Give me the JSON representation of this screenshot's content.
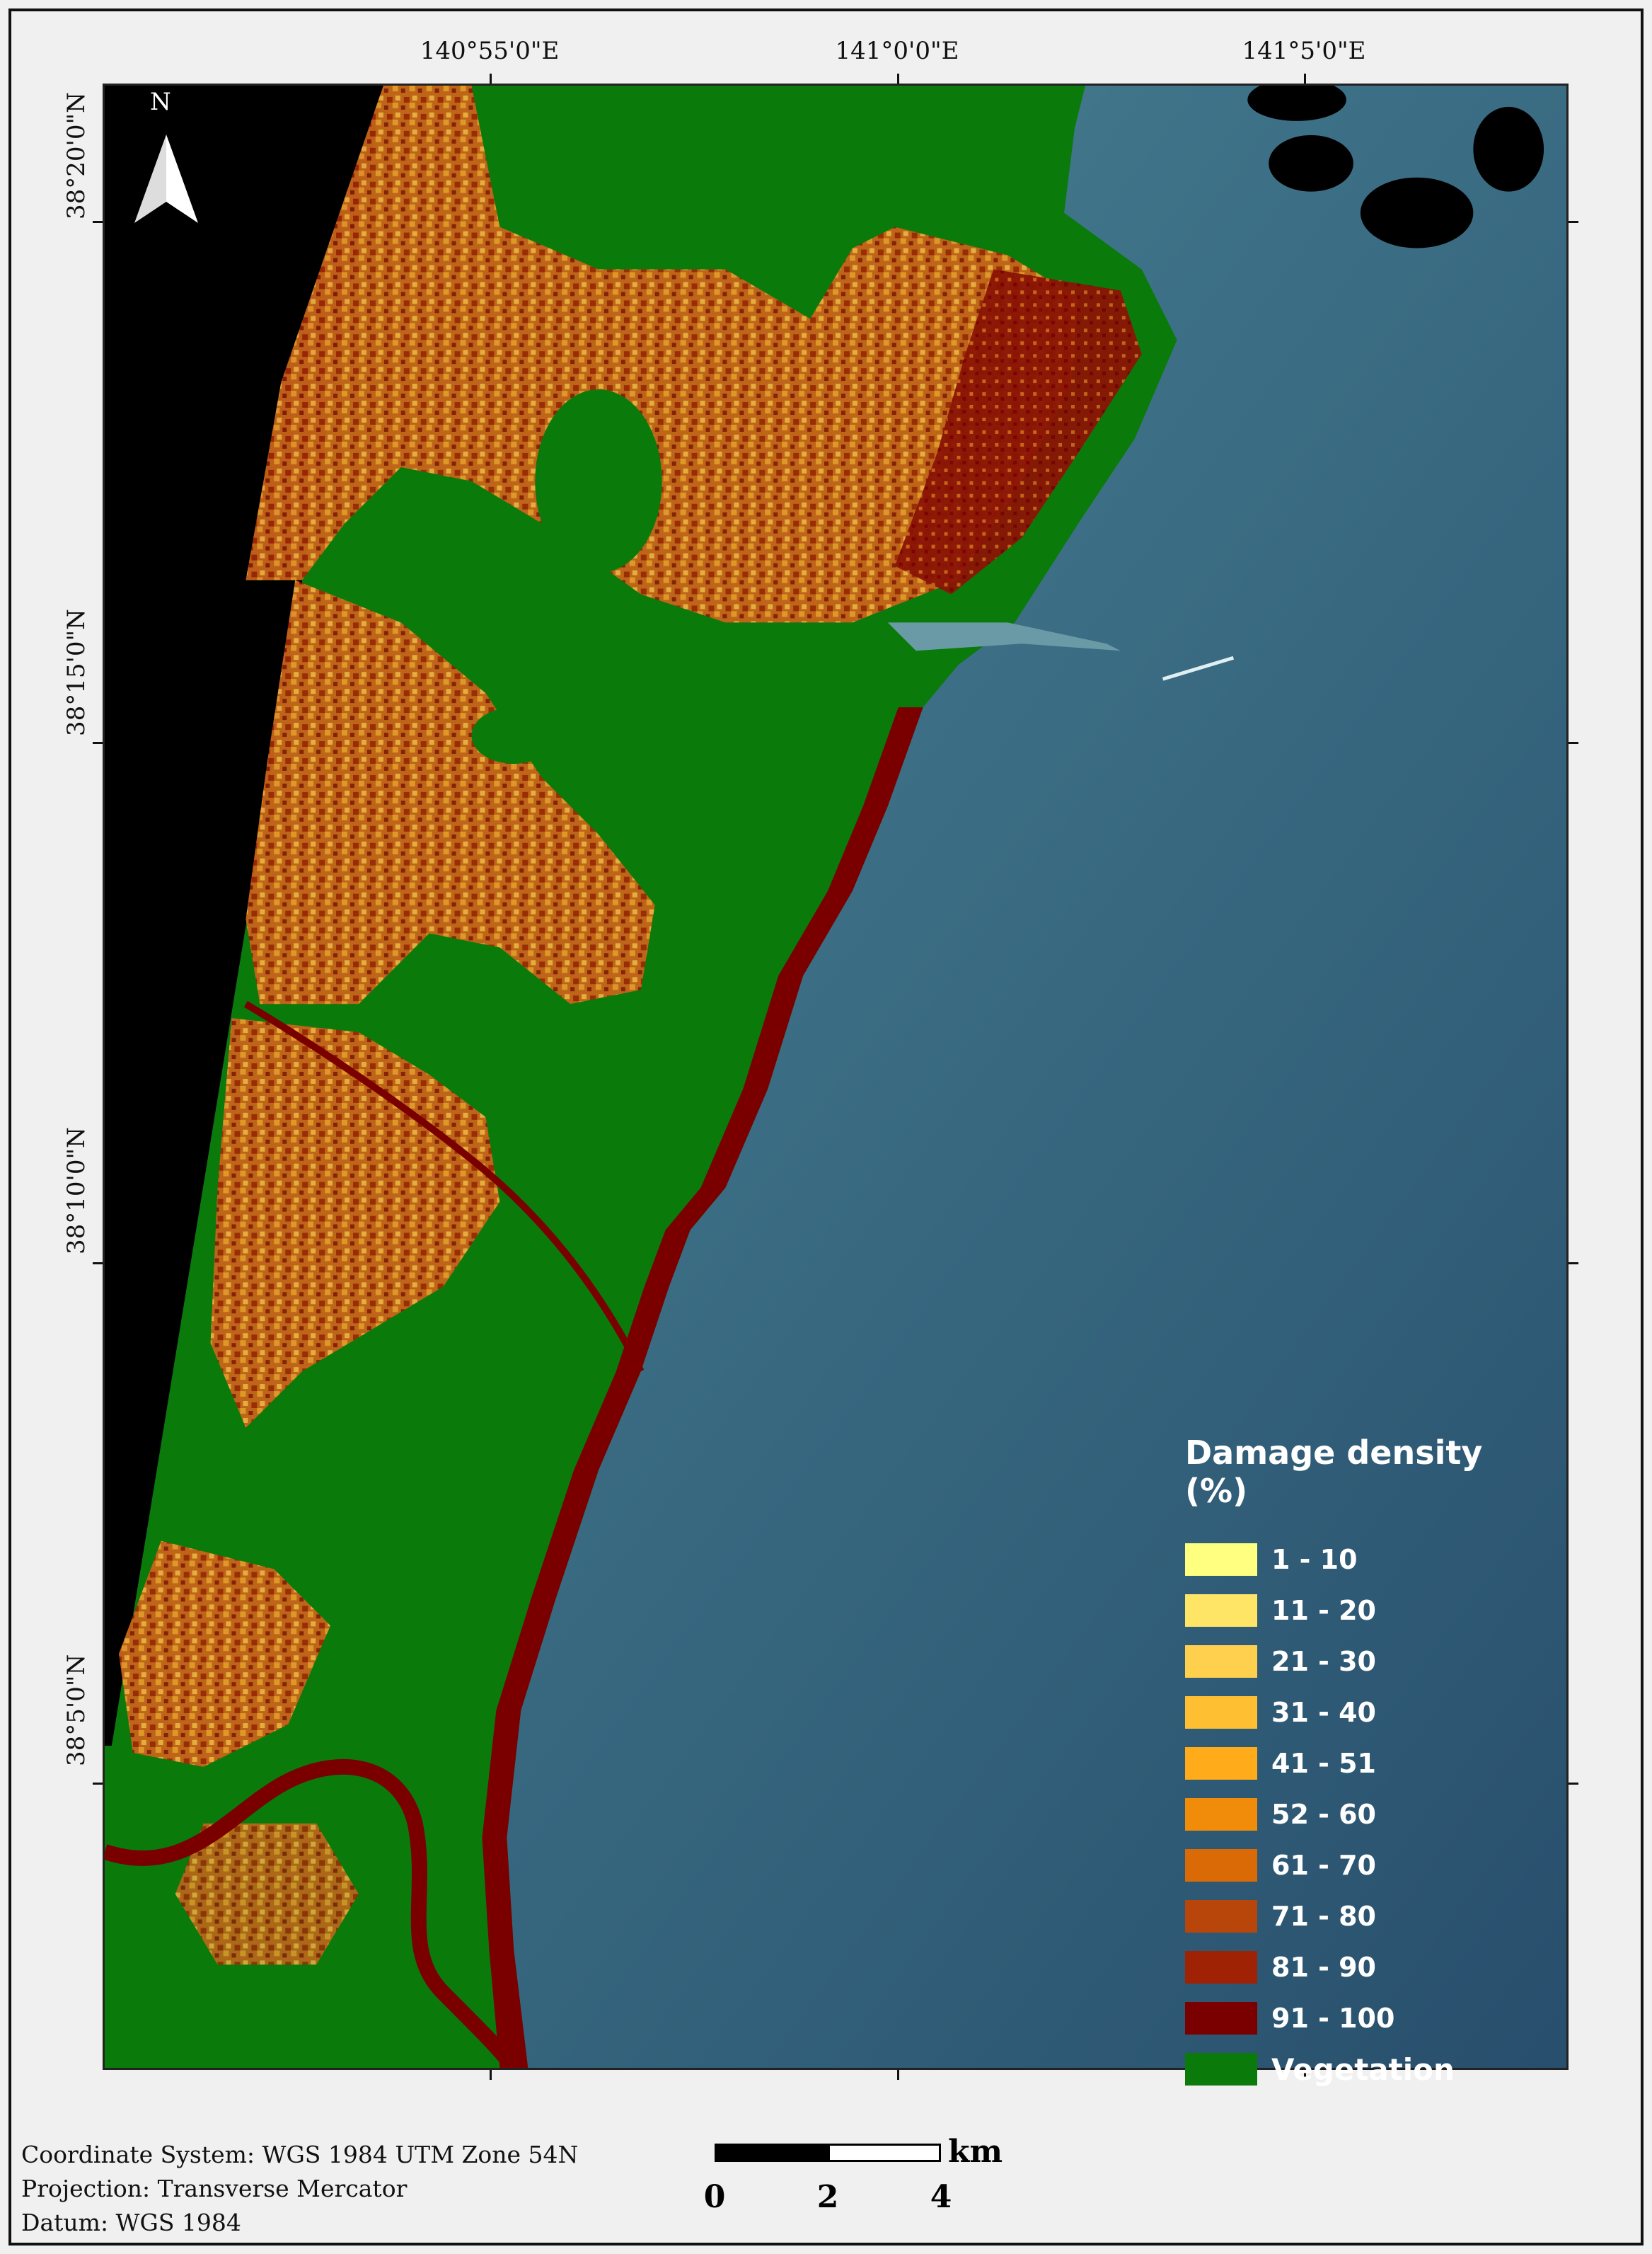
{
  "map": {
    "graticule_top": [
      "140°55'0\"E",
      "141°0'0\"E",
      "141°5'0\"E"
    ],
    "graticule_left": [
      "38°20'0\"N",
      "38°15'0\"N",
      "38°10'0\"N",
      "38°5'0\"N"
    ],
    "north_label": "N",
    "colors": {
      "no_data": "#000000",
      "sea": "#3d6f85",
      "vegetation": "#0a7a0a",
      "coast_damage": "#7a0000",
      "urban_damage": "#c8641a"
    }
  },
  "legend": {
    "title": "Damage density (%)",
    "items": [
      {
        "label": "1 - 10",
        "color": "#ffff80"
      },
      {
        "label": "11 - 20",
        "color": "#ffe566"
      },
      {
        "label": "21 - 30",
        "color": "#ffd04d"
      },
      {
        "label": "31 - 40",
        "color": "#ffbf33"
      },
      {
        "label": "41 - 51",
        "color": "#ffab1a"
      },
      {
        "label": "52 - 60",
        "color": "#f08c0a"
      },
      {
        "label": "61 - 70",
        "color": "#d96a05"
      },
      {
        "label": "71 - 80",
        "color": "#b8460a"
      },
      {
        "label": "81 - 90",
        "color": "#a02205"
      },
      {
        "label": "91 - 100",
        "color": "#7a0000"
      },
      {
        "label": "Vegetation",
        "color": "#0a7a0a"
      }
    ]
  },
  "footer": {
    "coordinate_system": "Coordinate System: WGS 1984 UTM Zone 54N",
    "projection": "Projection: Transverse Mercator",
    "datum": "Datum: WGS 1984"
  },
  "scalebar": {
    "unit": "km",
    "labels": [
      "0",
      "2",
      "4"
    ]
  }
}
